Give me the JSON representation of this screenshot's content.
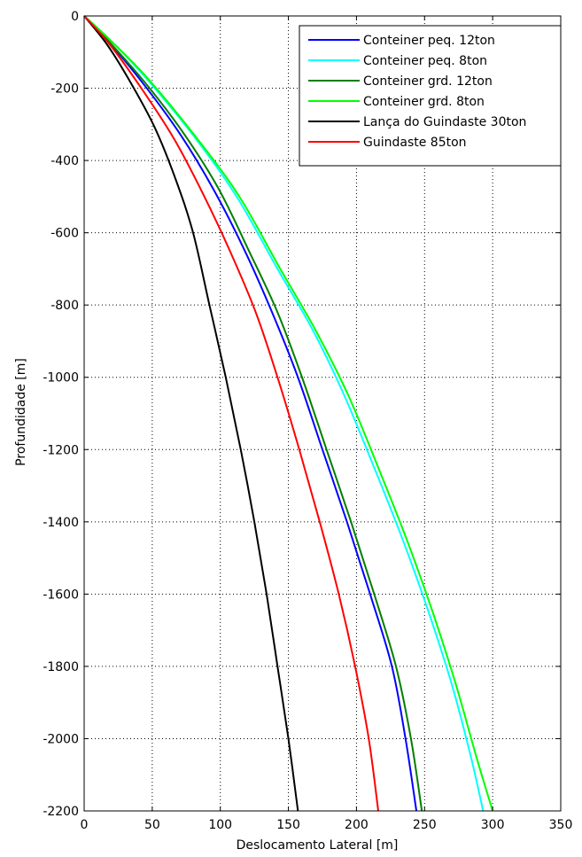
{
  "chart_data": {
    "type": "line",
    "title": "",
    "xlabel": "Deslocamento Lateral [m]",
    "ylabel": "Profundidade [m]",
    "xlim": [
      0,
      350
    ],
    "ylim": [
      -2200,
      0
    ],
    "xticks": [
      0,
      50,
      100,
      150,
      200,
      250,
      300,
      350
    ],
    "yticks": [
      0,
      -200,
      -400,
      -600,
      -800,
      -1000,
      -1200,
      -1400,
      -1600,
      -1800,
      -2000,
      -2200
    ],
    "grid": true,
    "legend_position": "top-right",
    "series": [
      {
        "name": "Conteiner peq. 12ton",
        "color": "#0000ff",
        "points": [
          [
            0,
            0
          ],
          [
            20,
            -80
          ],
          [
            46,
            -200
          ],
          [
            71,
            -330
          ],
          [
            95,
            -480
          ],
          [
            118,
            -650
          ],
          [
            138,
            -820
          ],
          [
            157,
            -1000
          ],
          [
            175,
            -1200
          ],
          [
            193,
            -1400
          ],
          [
            210,
            -1600
          ],
          [
            226,
            -1800
          ],
          [
            236,
            -2000
          ],
          [
            244,
            -2200
          ]
        ]
      },
      {
        "name": "Conteiner peq. 8ton",
        "color": "#00ffff",
        "points": [
          [
            0,
            0
          ],
          [
            20,
            -70
          ],
          [
            45,
            -170
          ],
          [
            80,
            -330
          ],
          [
            112,
            -500
          ],
          [
            142,
            -700
          ],
          [
            168,
            -870
          ],
          [
            191,
            -1050
          ],
          [
            213,
            -1250
          ],
          [
            234,
            -1450
          ],
          [
            253,
            -1650
          ],
          [
            270,
            -1850
          ],
          [
            284,
            -2050
          ],
          [
            293,
            -2200
          ]
        ]
      },
      {
        "name": "Conteiner grd. 12ton",
        "color": "#007f00",
        "points": [
          [
            0,
            0
          ],
          [
            20,
            -78
          ],
          [
            47,
            -195
          ],
          [
            74,
            -330
          ],
          [
            99,
            -480
          ],
          [
            121,
            -650
          ],
          [
            142,
            -820
          ],
          [
            160,
            -1000
          ],
          [
            178,
            -1200
          ],
          [
            196,
            -1400
          ],
          [
            213,
            -1600
          ],
          [
            229,
            -1800
          ],
          [
            240,
            -2000
          ],
          [
            248,
            -2200
          ]
        ]
      },
      {
        "name": "Conteiner grd. 8ton",
        "color": "#00ff00",
        "points": [
          [
            0,
            0
          ],
          [
            20,
            -70
          ],
          [
            46,
            -170
          ],
          [
            81,
            -330
          ],
          [
            114,
            -500
          ],
          [
            144,
            -700
          ],
          [
            170,
            -870
          ],
          [
            194,
            -1050
          ],
          [
            216,
            -1250
          ],
          [
            237,
            -1450
          ],
          [
            256,
            -1650
          ],
          [
            273,
            -1850
          ],
          [
            288,
            -2050
          ],
          [
            300,
            -2200
          ]
        ]
      },
      {
        "name": "Lança do Guindaste 30ton",
        "color": "#000000",
        "points": [
          [
            0,
            0
          ],
          [
            17,
            -80
          ],
          [
            35,
            -190
          ],
          [
            52,
            -310
          ],
          [
            67,
            -450
          ],
          [
            80,
            -600
          ],
          [
            92,
            -800
          ],
          [
            104,
            -1000
          ],
          [
            115,
            -1200
          ],
          [
            125,
            -1400
          ],
          [
            134,
            -1600
          ],
          [
            142,
            -1800
          ],
          [
            150,
            -2000
          ],
          [
            157,
            -2200
          ]
        ]
      },
      {
        "name": "Guindaste 85ton",
        "color": "#ff0000",
        "points": [
          [
            0,
            0
          ],
          [
            19,
            -80
          ],
          [
            42,
            -200
          ],
          [
            66,
            -340
          ],
          [
            87,
            -490
          ],
          [
            107,
            -650
          ],
          [
            126,
            -820
          ],
          [
            142,
            -1000
          ],
          [
            158,
            -1200
          ],
          [
            173,
            -1400
          ],
          [
            187,
            -1600
          ],
          [
            199,
            -1800
          ],
          [
            209,
            -2000
          ],
          [
            216,
            -2200
          ]
        ]
      }
    ]
  }
}
